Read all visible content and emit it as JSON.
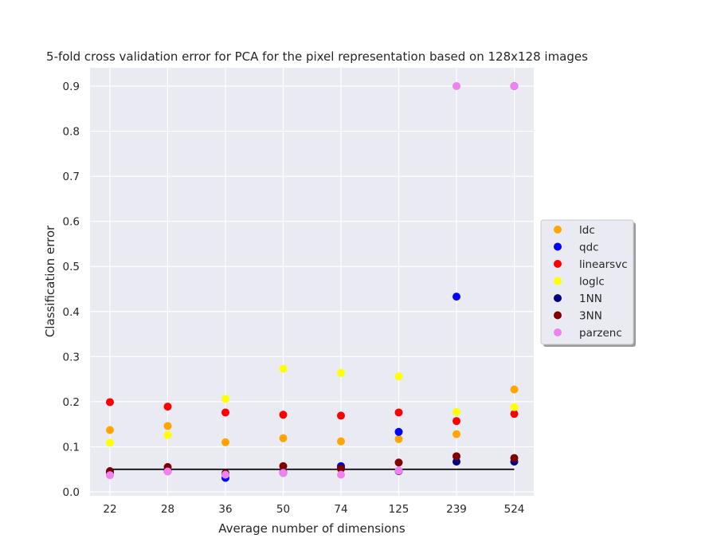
{
  "chart_data": {
    "type": "scatter",
    "title": "5-fold cross validation error for PCA for the pixel representation based on 128x128 images",
    "xlabel": "Average number of dimensions",
    "ylabel": "Classification error",
    "categories": [
      "22",
      "28",
      "36",
      "50",
      "74",
      "125",
      "239",
      "524"
    ],
    "ylim": [
      -0.01,
      0.95
    ],
    "yticks": [
      0.0,
      0.1,
      0.2,
      0.3,
      0.4,
      0.5,
      0.6,
      0.7,
      0.8,
      0.9
    ],
    "ytick_labels": [
      "0.0",
      "0.1",
      "0.2",
      "0.3",
      "0.4",
      "0.5",
      "0.6",
      "0.7",
      "0.8",
      "0.9"
    ],
    "grid": true,
    "legend_position": "center-right outside",
    "background_color": "#eaeaf2",
    "series": [
      {
        "name": "ldc",
        "color": "#ffa500",
        "values": [
          0.137,
          0.146,
          0.11,
          0.119,
          0.112,
          0.117,
          0.128,
          0.227
        ]
      },
      {
        "name": "qdc",
        "color": "#0000ff",
        "values": [
          0.043,
          0.046,
          0.031,
          0.043,
          0.057,
          0.133,
          0.433,
          0.9
        ]
      },
      {
        "name": "linearsvc",
        "color": "#ff0000",
        "values": [
          0.199,
          0.189,
          0.176,
          0.171,
          0.169,
          0.176,
          0.157,
          0.173
        ]
      },
      {
        "name": "loglc",
        "color": "#ffff00",
        "values": [
          0.109,
          0.126,
          0.206,
          0.273,
          0.264,
          0.256,
          0.177,
          0.188
        ]
      },
      {
        "name": "1NN",
        "color": "#000080",
        "values": [
          0.043,
          0.046,
          0.039,
          0.042,
          0.053,
          0.046,
          0.067,
          0.067
        ]
      },
      {
        "name": "3NN",
        "color": "#800000",
        "values": [
          0.046,
          0.055,
          0.041,
          0.057,
          0.051,
          0.065,
          0.079,
          0.075
        ]
      },
      {
        "name": "parzenc",
        "color": "#ee82ee",
        "values": [
          0.037,
          0.045,
          0.038,
          0.042,
          0.038,
          0.047,
          0.9,
          0.9
        ]
      }
    ],
    "reference_line": {
      "y": 0.05,
      "color": "#000000"
    }
  }
}
